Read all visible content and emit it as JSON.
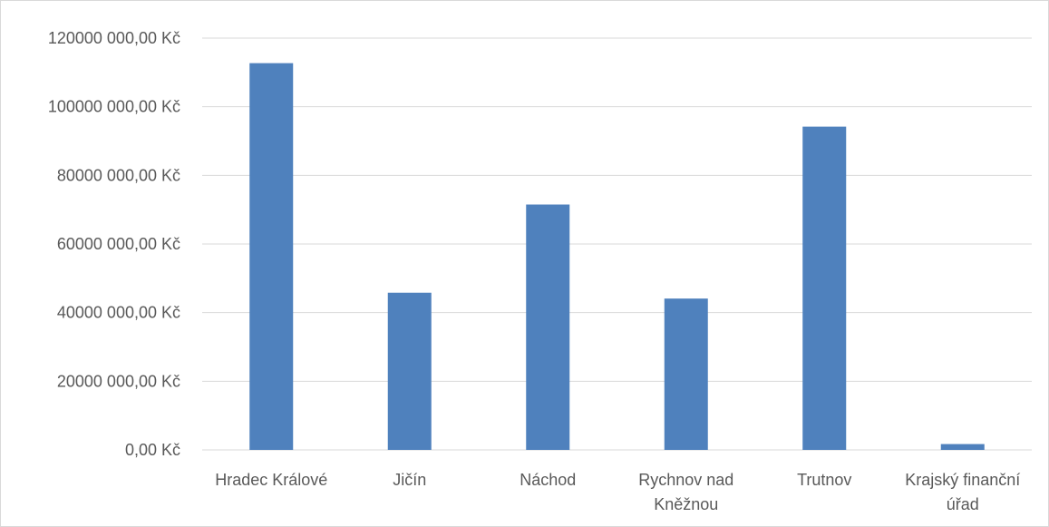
{
  "chart_data": {
    "type": "bar",
    "categories": [
      "Hradec Králové",
      "Jičín",
      "Náchod",
      "Rychnov nad Kněžnou",
      "Trutnov",
      "Krajský finanční úřad"
    ],
    "category_lines": [
      [
        "Hradec Králové"
      ],
      [
        "Jičín"
      ],
      [
        "Náchod"
      ],
      [
        "Rychnov nad",
        "Kněžnou"
      ],
      [
        "Trutnov"
      ],
      [
        "Krajský finanční",
        "úřad"
      ]
    ],
    "values": [
      112700000,
      45800000,
      71500000,
      44100000,
      94200000,
      1700000
    ],
    "ylim": [
      0,
      120000000
    ],
    "yticks": [
      0,
      20000000,
      40000000,
      60000000,
      80000000,
      100000000,
      120000000
    ],
    "ytick_labels": [
      "0,00 Kč",
      "20000 000,00 Kč",
      "40000 000,00 Kč",
      "60000 000,00 Kč",
      "80000 000,00 Kč",
      "100000 000,00 Kč",
      "120000 000,00 Kč"
    ],
    "grid": true,
    "bar_color": "#4f81bd",
    "grid_color": "#d9d9d9"
  }
}
